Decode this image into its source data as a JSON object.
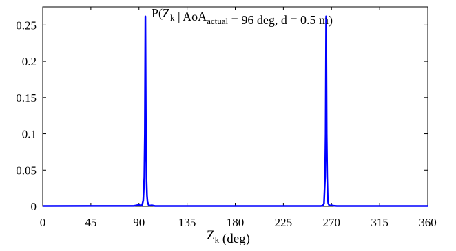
{
  "chart_data": {
    "type": "line",
    "title": {
      "parts": [
        {
          "text": "P(Z",
          "sub": false
        },
        {
          "text": "k",
          "sub": true
        },
        {
          "text": " | AoA",
          "sub": false
        },
        {
          "text": "actual",
          "sub": true
        },
        {
          "text": " = 96 deg, d = 0.5 m)",
          "sub": false
        }
      ]
    },
    "xlabel": {
      "parts": [
        {
          "text": "Z",
          "sub": false
        },
        {
          "text": "k",
          "sub": true
        },
        {
          "text": " (deg)",
          "sub": false
        }
      ]
    },
    "ylabel": "",
    "xlim": [
      0,
      360
    ],
    "ylim": [
      0,
      0.275
    ],
    "x_ticks": [
      0,
      45,
      90,
      135,
      180,
      225,
      270,
      315,
      360
    ],
    "x_tick_labels": [
      "0",
      "45",
      "90",
      "135",
      "180",
      "225",
      "270",
      "315",
      "360"
    ],
    "y_ticks": [
      0,
      0.05,
      0.1,
      0.15,
      0.2,
      0.25
    ],
    "y_tick_labels": [
      "0",
      "0.05",
      "0.1",
      "0.15",
      "0.2",
      "0.25"
    ],
    "grid": false,
    "series": [
      {
        "color": "#0000ff",
        "x": [
          0,
          85,
          88,
          90,
          92,
          93,
          94,
          95,
          95.5,
          96,
          96.5,
          97,
          97.5,
          98,
          99,
          100,
          102,
          105,
          180,
          260,
          262,
          263,
          264,
          264.5,
          265,
          265.5,
          266,
          266.5,
          267,
          268,
          270,
          272,
          275,
          360
        ],
        "y": [
          0.0005,
          0.0006,
          0.0015,
          0.002,
          0.0008,
          0.002,
          0.008,
          0.04,
          0.1,
          0.262,
          0.1,
          0.04,
          0.015,
          0.006,
          0.002,
          0.001,
          0.0015,
          0.0005,
          0.0005,
          0.0005,
          0.001,
          0.004,
          0.04,
          0.1,
          0.262,
          0.1,
          0.04,
          0.01,
          0.004,
          0.001,
          0.0015,
          0.0008,
          0.0005,
          0.0005
        ]
      }
    ]
  }
}
